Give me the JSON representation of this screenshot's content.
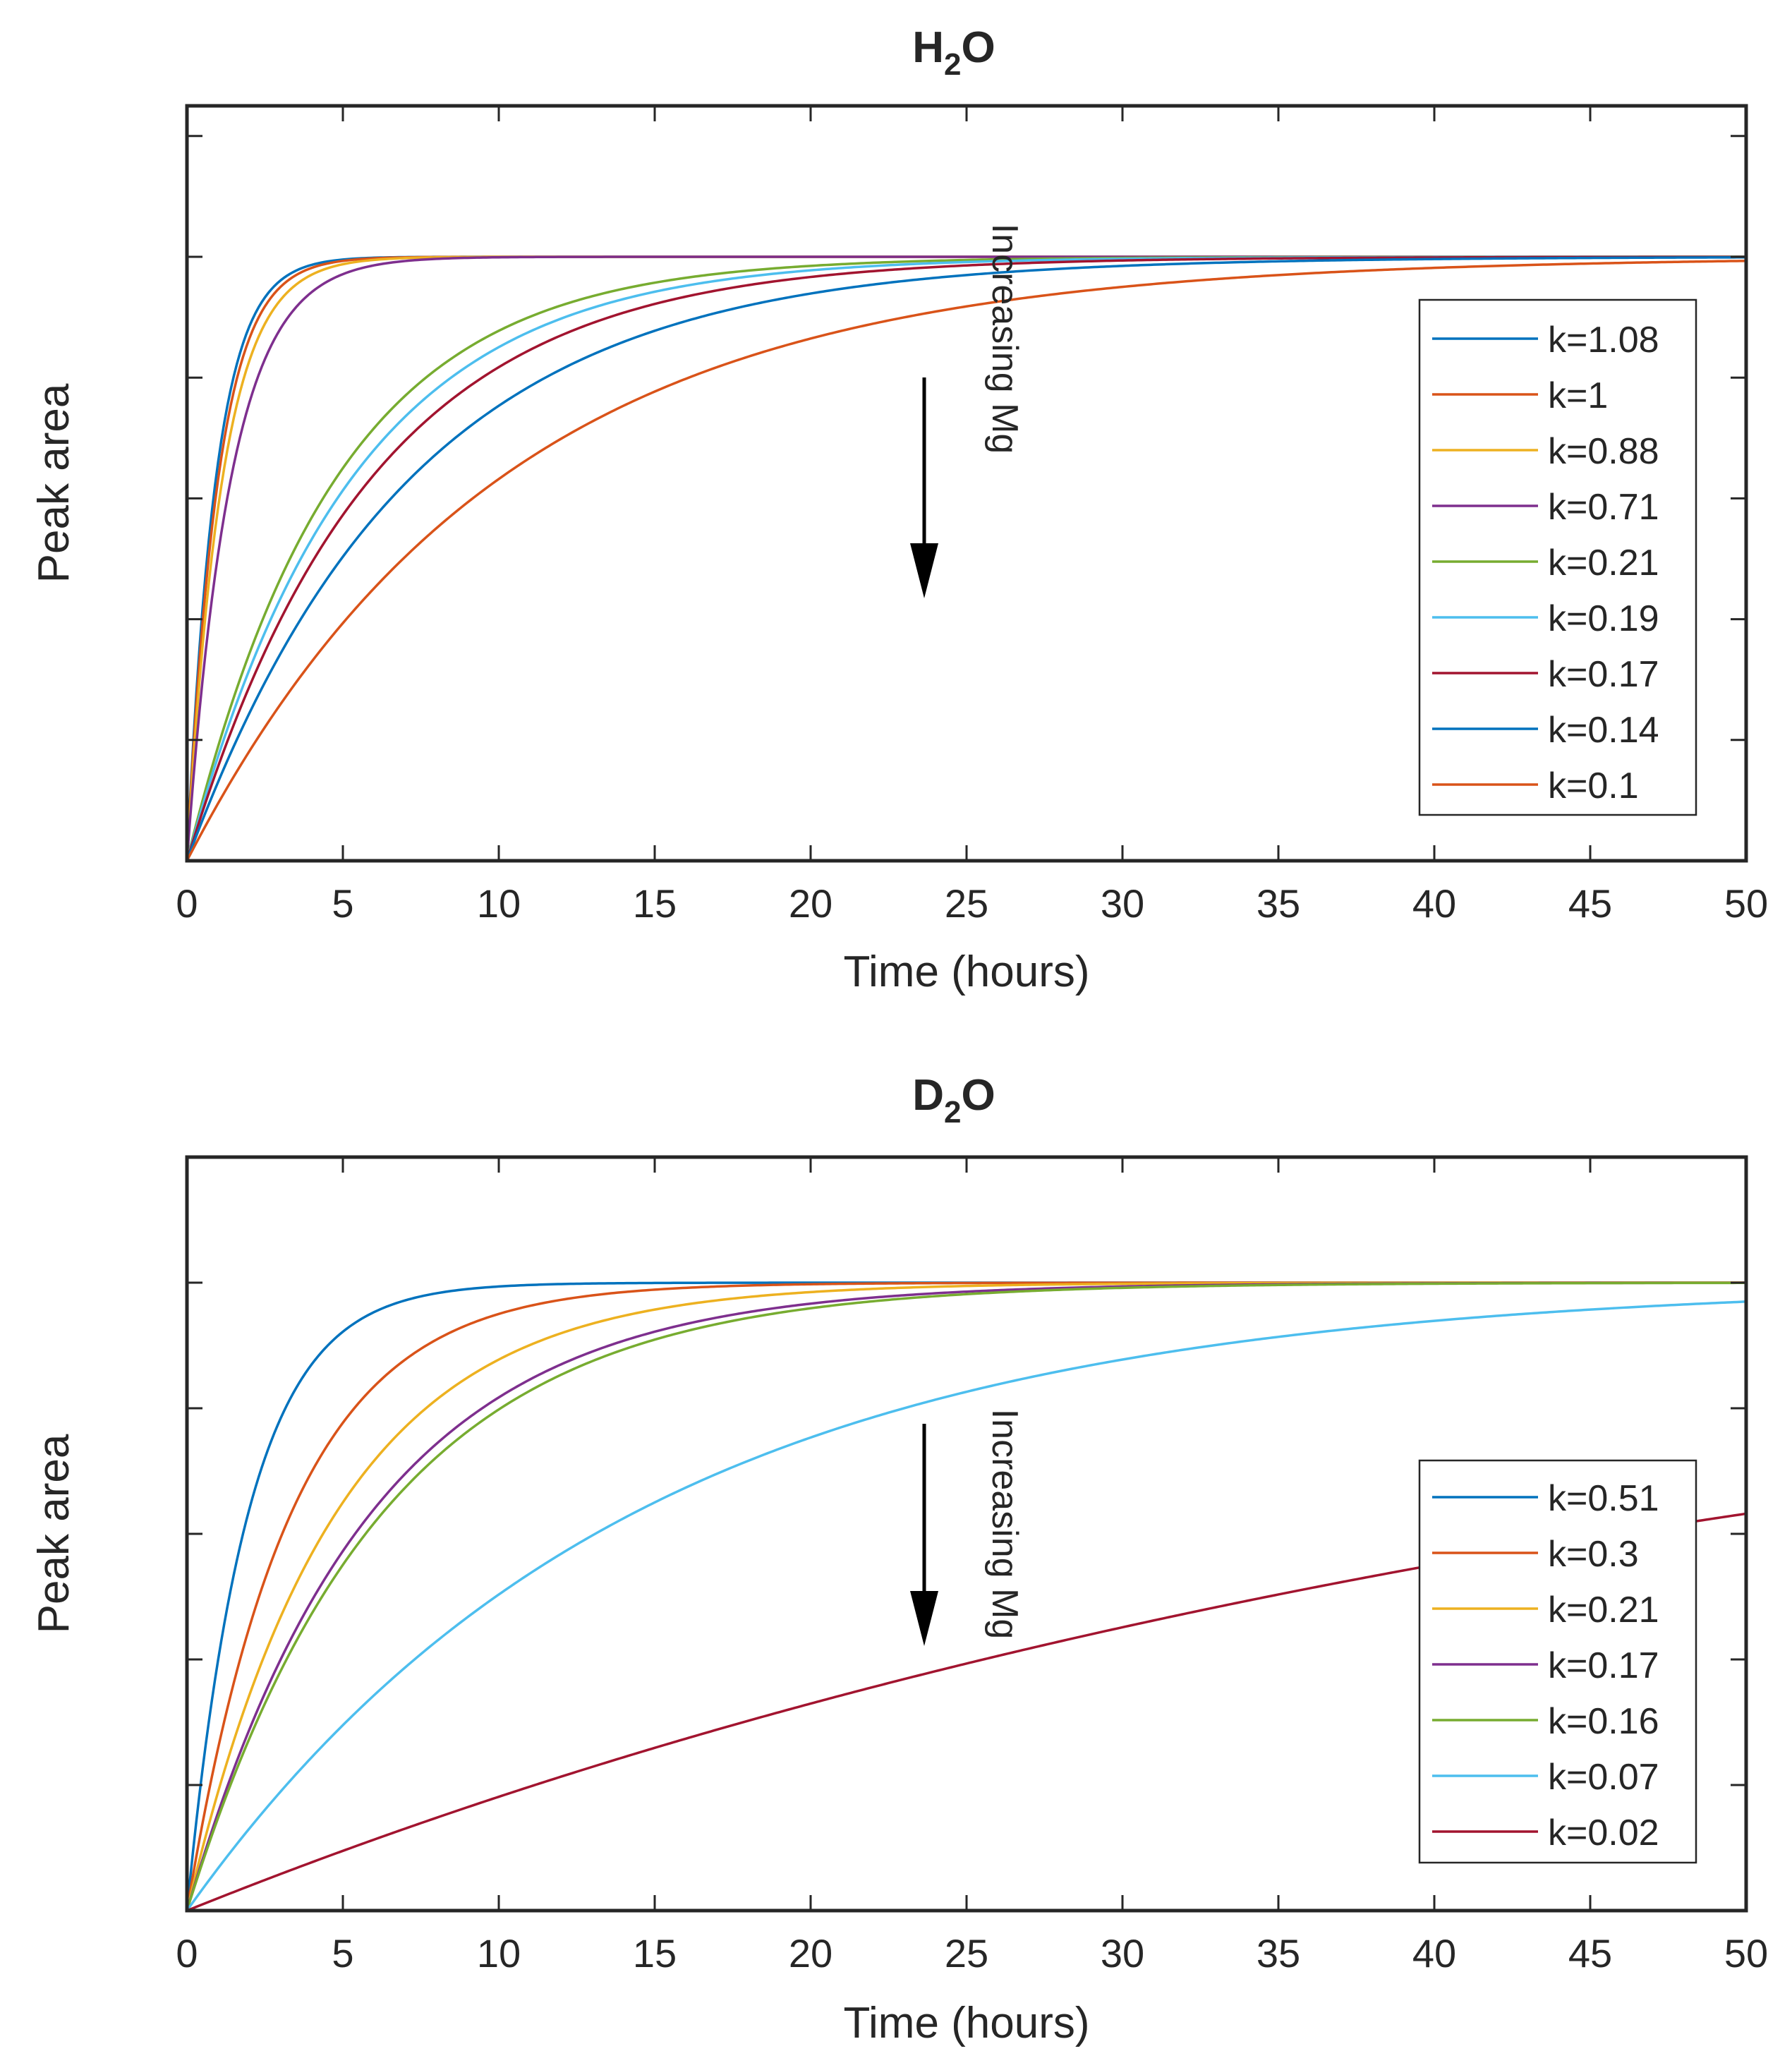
{
  "colors": {
    "series": [
      "#0072BD",
      "#D95319",
      "#EDB120",
      "#7E2F8E",
      "#77AC30",
      "#4DBEEE",
      "#A2142F"
    ],
    "axis": "#262626",
    "annotation": "#000000"
  },
  "chart_data": [
    {
      "type": "line",
      "title_main": "H",
      "title_sub": "2",
      "title_end": "O",
      "xlabel": "Time (hours)",
      "ylabel": "Peak area",
      "xlim": [
        0,
        50
      ],
      "ylim": [
        0,
        1.25
      ],
      "xticks": [
        "0",
        "5",
        "10",
        "15",
        "20",
        "25",
        "30",
        "35",
        "40",
        "45",
        "50"
      ],
      "yticks_count": 6,
      "y_tick_labels_shown": false,
      "grid": false,
      "legend_position": "right-middle",
      "annotation": {
        "text": "Increasing Mg",
        "arrow": "down"
      },
      "model": "y = 1 - exp(-k * t)",
      "series": [
        {
          "name": "k=1.08",
          "k": 1.08
        },
        {
          "name": "k=1",
          "k": 1.0
        },
        {
          "name": "k=0.88",
          "k": 0.88
        },
        {
          "name": "k=0.71",
          "k": 0.71
        },
        {
          "name": "k=0.21",
          "k": 0.21
        },
        {
          "name": "k=0.19",
          "k": 0.19
        },
        {
          "name": "k=0.17",
          "k": 0.17
        },
        {
          "name": "k=0.14",
          "k": 0.14
        },
        {
          "name": "k=0.1",
          "k": 0.1
        }
      ]
    },
    {
      "type": "line",
      "title_main": "D",
      "title_sub": "2",
      "title_end": "O",
      "xlabel": "Time (hours)",
      "ylabel": "Peak area",
      "xlim": [
        0,
        50
      ],
      "ylim": [
        0,
        1.2
      ],
      "xticks": [
        "0",
        "5",
        "10",
        "15",
        "20",
        "25",
        "30",
        "35",
        "40",
        "45",
        "50"
      ],
      "yticks_count": 6,
      "y_tick_labels_shown": false,
      "grid": false,
      "legend_position": "right-lower",
      "annotation": {
        "text": "Increasing Mg",
        "arrow": "down"
      },
      "model": "y = 1 - exp(-k * t)",
      "series": [
        {
          "name": "k=0.51",
          "k": 0.51
        },
        {
          "name": "k=0.3",
          "k": 0.3
        },
        {
          "name": "k=0.21",
          "k": 0.21
        },
        {
          "name": "k=0.17",
          "k": 0.17
        },
        {
          "name": "k=0.16",
          "k": 0.16
        },
        {
          "name": "k=0.07",
          "k": 0.07
        },
        {
          "name": "k=0.02",
          "k": 0.02
        }
      ]
    }
  ]
}
